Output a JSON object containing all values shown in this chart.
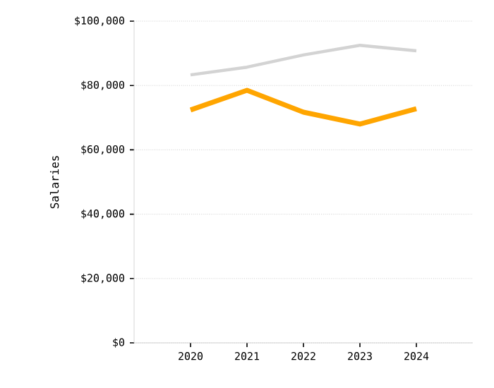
{
  "chart_data": {
    "type": "line",
    "ylabel": "Salaries",
    "categories": [
      "2020",
      "2021",
      "2022",
      "2023",
      "2024"
    ],
    "series": [
      {
        "color": "#d3d3d3",
        "values": [
          83300,
          85700,
          89500,
          92500,
          90800
        ]
      },
      {
        "color": "#ffa500",
        "values": [
          72400,
          78500,
          71700,
          68000,
          72800
        ]
      }
    ],
    "ylim": [
      0,
      100000
    ],
    "yticks": [
      {
        "value": 0,
        "label": "$0"
      },
      {
        "value": 20000,
        "label": "$20,000"
      },
      {
        "value": 40000,
        "label": "$40,000"
      },
      {
        "value": 60000,
        "label": "$60,000"
      },
      {
        "value": 80000,
        "label": "$80,000"
      },
      {
        "value": 100000,
        "label": "$100,000"
      }
    ],
    "grid": "y",
    "marker": "none",
    "line_style": "solid"
  }
}
